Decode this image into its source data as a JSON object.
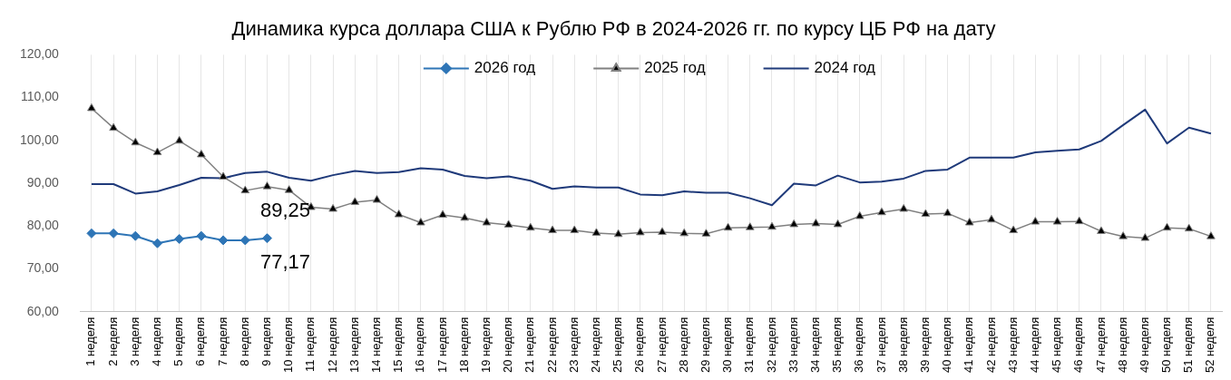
{
  "chart_data": {
    "type": "line",
    "title": "Динамика курса доллара США к Рублю РФ в 2024-2026 гг. по курсу ЦБ РФ на дату",
    "categories": [
      "1 неделя",
      "2 неделя",
      "3 неделя",
      "4 неделя",
      "5 неделя",
      "6 неделя",
      "7 неделя",
      "8 неделя",
      "9 неделя",
      "10 неделя",
      "11 неделя",
      "12 неделя",
      "13 неделя",
      "14 неделя",
      "15 неделя",
      "16 неделя",
      "17 неделя",
      "18 неделя",
      "19 неделя",
      "20 неделя",
      "21 неделя",
      "22 неделя",
      "23 неделя",
      "24 неделя",
      "25 неделя",
      "26 неделя",
      "27 неделя",
      "28 неделя",
      "29 неделя",
      "30 неделя",
      "31 неделя",
      "32 неделя",
      "33 неделя",
      "34 неделя",
      "35 неделя",
      "36 неделя",
      "37 неделя",
      "38 неделя",
      "39 неделя",
      "40 неделя",
      "41 неделя",
      "42 неделя",
      "43 неделя",
      "44 неделя",
      "45 неделя",
      "46 неделя",
      "47 неделя",
      "48 неделя",
      "49 неделя",
      "50 неделя",
      "51 неделя",
      "52 неделя"
    ],
    "series": [
      {
        "name": "2026 год",
        "color": "#2e75b6",
        "marker": "diamond",
        "values": [
          78.3,
          78.3,
          77.7,
          76.0,
          77.0,
          77.7,
          76.7,
          76.7,
          77.17,
          null,
          null,
          null,
          null,
          null,
          null,
          null,
          null,
          null,
          null,
          null,
          null,
          null,
          null,
          null,
          null,
          null,
          null,
          null,
          null,
          null,
          null,
          null,
          null,
          null,
          null,
          null,
          null,
          null,
          null,
          null,
          null,
          null,
          null,
          null,
          null,
          null,
          null,
          null,
          null,
          null,
          null,
          null
        ],
        "value_labels": [
          null,
          null,
          null,
          null,
          null,
          null,
          null,
          null,
          "77,17",
          null,
          null,
          null,
          null,
          null,
          null,
          null,
          null,
          null,
          null,
          null,
          null,
          null,
          null,
          null,
          null,
          null,
          null,
          null,
          null,
          null,
          null,
          null,
          null,
          null,
          null,
          null,
          null,
          null,
          null,
          null,
          null,
          null,
          null,
          null,
          null,
          null,
          null,
          null,
          null,
          null,
          null,
          null
        ]
      },
      {
        "name": "2025 год",
        "color": "#808080",
        "marker": "triangle",
        "values": [
          107.5,
          102.9,
          99.5,
          97.2,
          99.9,
          96.7,
          91.5,
          88.3,
          89.25,
          88.4,
          84.4,
          84.0,
          85.6,
          86.1,
          82.7,
          80.8,
          82.6,
          81.9,
          80.8,
          80.3,
          79.6,
          79.0,
          79.0,
          78.4,
          78.1,
          78.5,
          78.6,
          78.3,
          78.2,
          79.6,
          79.7,
          79.8,
          80.4,
          80.6,
          80.4,
          82.3,
          83.2,
          84.0,
          82.8,
          83.0,
          80.8,
          81.5,
          79.0,
          81.0,
          81.0,
          81.1,
          78.8,
          77.6,
          77.2,
          79.6,
          79.4,
          77.6
        ],
        "value_labels": [
          null,
          null,
          null,
          null,
          null,
          null,
          null,
          null,
          "89,25",
          null,
          null,
          null,
          null,
          null,
          null,
          null,
          null,
          null,
          null,
          null,
          null,
          null,
          null,
          null,
          null,
          null,
          null,
          null,
          null,
          null,
          null,
          null,
          null,
          null,
          null,
          null,
          null,
          null,
          null,
          null,
          null,
          null,
          null,
          null,
          null,
          null,
          null,
          null,
          null,
          null,
          null,
          null
        ]
      },
      {
        "name": "2024 год",
        "color": "#1f3a7a",
        "marker": "none",
        "values": [
          89.8,
          89.8,
          87.6,
          88.1,
          89.6,
          91.3,
          91.2,
          92.4,
          92.7,
          91.3,
          90.6,
          91.9,
          92.9,
          92.4,
          92.6,
          93.5,
          93.2,
          91.7,
          91.2,
          91.6,
          90.6,
          88.7,
          89.3,
          89.0,
          89.0,
          87.4,
          87.2,
          88.1,
          87.8,
          87.8,
          86.5,
          84.9,
          89.9,
          89.5,
          91.8,
          90.2,
          90.4,
          91.1,
          92.9,
          93.2,
          96.0,
          96.0,
          96.0,
          97.2,
          97.6,
          97.9,
          99.9,
          103.6,
          107.2,
          99.3,
          103.0,
          101.6
        ]
      }
    ],
    "ylim": [
      60,
      120
    ],
    "yticks": [
      {
        "value": 60,
        "label": "60,00"
      },
      {
        "value": 70,
        "label": "70,00"
      },
      {
        "value": 80,
        "label": "80,00"
      },
      {
        "value": 90,
        "label": "90,00"
      },
      {
        "value": 100,
        "label": "100,00"
      },
      {
        "value": 110,
        "label": "110,00"
      },
      {
        "value": 120,
        "label": "120,00"
      }
    ],
    "grid": "x",
    "legend": "top",
    "line_style": "solid"
  }
}
